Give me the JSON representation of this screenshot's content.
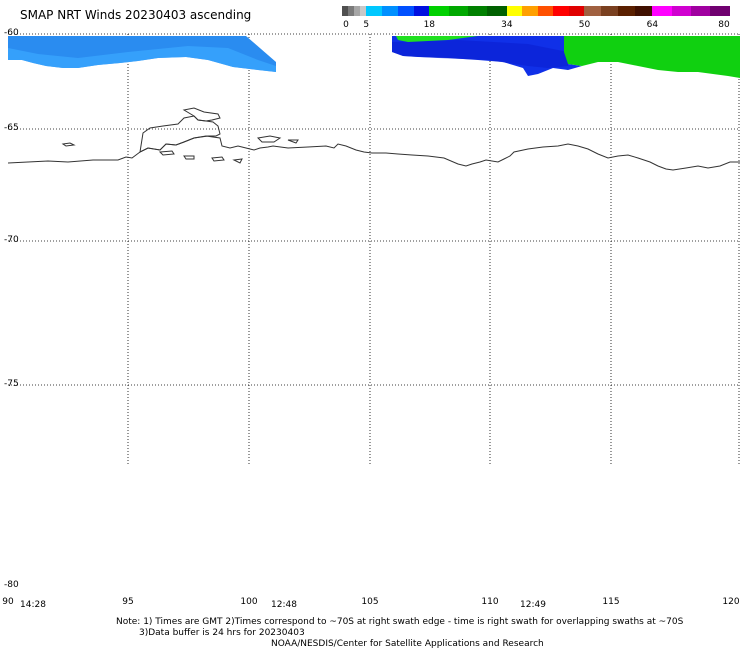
{
  "title": "SMAP NRT Winds 20230403 ascending",
  "colorbar": {
    "segments": [
      {
        "from": 0,
        "to": 5,
        "colors": [
          "#505050",
          "#7a7a7a",
          "#a6a6a6",
          "#c8c8c8"
        ]
      },
      {
        "from": 5,
        "to": 18,
        "colors": [
          "#00c8ff",
          "#0090ff",
          "#0050ff",
          "#0010e0"
        ]
      },
      {
        "from": 18,
        "to": 34,
        "colors": [
          "#00d000",
          "#00a800",
          "#008000",
          "#006000"
        ]
      },
      {
        "from": 34,
        "to": 50,
        "colors": [
          "#ffff00",
          "#ffa000",
          "#ff5000",
          "#ff0000",
          "#e00000"
        ]
      },
      {
        "from": 50,
        "to": 64,
        "colors": [
          "#a06040",
          "#7a4020",
          "#5a2000",
          "#401000"
        ]
      },
      {
        "from": 64,
        "to": 80,
        "colors": [
          "#ff00ff",
          "#d000d0",
          "#a000a0",
          "#700070"
        ]
      }
    ],
    "tick_labels": [
      "0",
      "5",
      "18",
      "34",
      "50",
      "64",
      "80"
    ]
  },
  "map": {
    "lat_labels": [
      "-60",
      "-65",
      "-70",
      "-75",
      "-80"
    ],
    "lon_labels": [
      "90",
      "95",
      "100",
      "105",
      "110",
      "115",
      "120"
    ],
    "swath_times": [
      "14:28",
      "12:48",
      "12:49"
    ],
    "grid": true
  },
  "notes": {
    "line1": "Note: 1) Times are GMT 2)Times correspond to ~70S at right swath edge - time is right swath for overlapping swaths at ~70S",
    "line2": "3)Data buffer is 24 hrs for 20230403",
    "line3": "NOAA/NESDIS/Center for Satellite Applications and Research"
  }
}
